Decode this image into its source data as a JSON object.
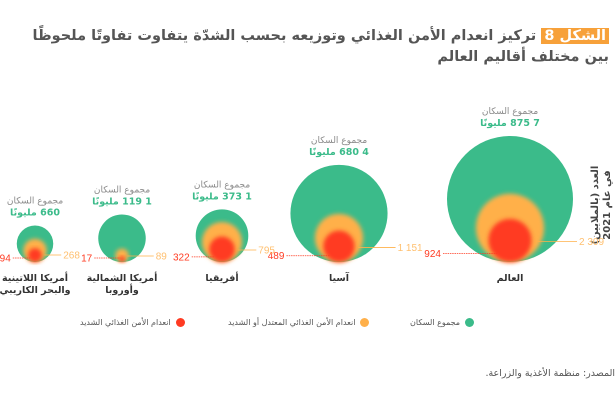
{
  "title": {
    "badge": "الشكل 8",
    "text": "تركيز انعدام الأمن الغذائي وتوزيعه بحسب الشدّة يتفاوت تفاوتًا ملحوظًا بين مختلف أقاليم العالم"
  },
  "axis_label": {
    "line1": "العدد (بالملايين)",
    "line2": "في عام 2021"
  },
  "colors": {
    "population": "#3bbb8a",
    "moderate_or_severe": "#ffb04a",
    "severe": "#ff3b22",
    "population_text": "#3bbb8a",
    "moderate_text": "#ffc070",
    "severe_text": "#ff3b22"
  },
  "chart_data": {
    "type": "bubble",
    "unit": "millions",
    "population_label": "مجموع السكان",
    "million_suffix": "مليونًا",
    "regions": [
      {
        "name": "العالم",
        "population": 7875,
        "population_text": "7 875",
        "moderate_or_severe": 2309,
        "moderate_text": "2 309",
        "severe": 924,
        "severe_text": "924"
      },
      {
        "name": "آسيا",
        "population": 4680,
        "population_text": "4 680",
        "moderate_or_severe": 1151,
        "moderate_text": "1 151",
        "severe": 489,
        "severe_text": "489"
      },
      {
        "name": "أفريقيا",
        "population": 1373,
        "population_text": "1 373",
        "moderate_or_severe": 795,
        "moderate_text": "795",
        "severe": 322,
        "severe_text": "322"
      },
      {
        "name": "أمريكا الشمالية وأوروبا",
        "name_lines": [
          "أمريكا الشمالية",
          "وأوروبا"
        ],
        "population": 1119,
        "population_text": "1 119",
        "moderate_or_severe": 89,
        "moderate_text": "89",
        "severe": 17,
        "severe_text": "17"
      },
      {
        "name": "أمريكا اللاتينية والبحر الكاريبي",
        "name_lines": [
          "أمريكا اللاتينية",
          "والبحر الكاريبي"
        ],
        "population": 660,
        "population_text": "660",
        "moderate_or_severe": 268,
        "moderate_text": "268",
        "severe": 94,
        "severe_text": "94"
      }
    ],
    "legend": [
      {
        "label": "مجموع السكان",
        "color": "#3bbb8a"
      },
      {
        "label": "انعدام الأمن الغذائي المعتدل أو الشديد",
        "color": "#ffb04a"
      },
      {
        "label": "انعدام الأمن الغذائي الشديد",
        "color": "#ff3b22"
      }
    ],
    "legend_placement": "bottom"
  },
  "source": "المصدر: منظمة الأغذية والزراعة."
}
